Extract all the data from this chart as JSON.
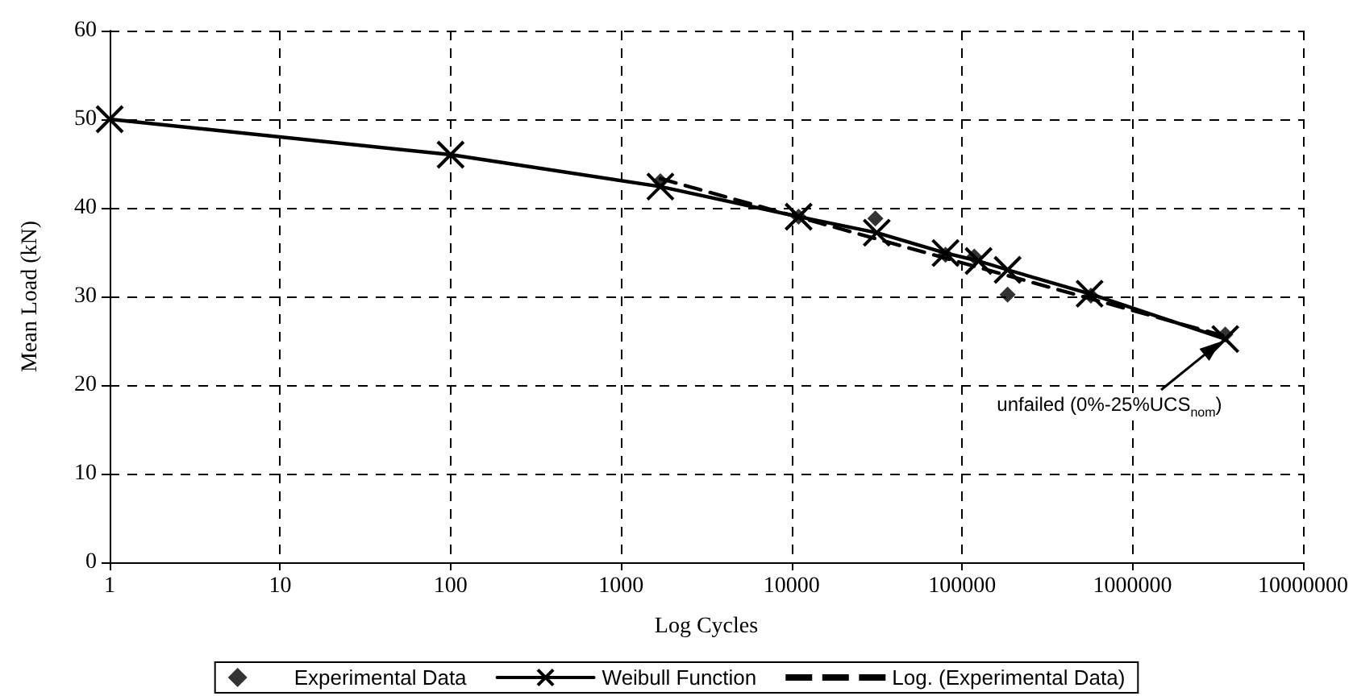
{
  "chart_data": {
    "type": "line",
    "xlabel": "Log Cycles",
    "ylabel": "Mean Load (kN)",
    "log": "x",
    "grid": true,
    "legend": "bottom",
    "xlim": [
      1,
      10000000
    ],
    "xticks": [
      1,
      10,
      100,
      1000,
      10000,
      100000,
      1000000,
      10000000
    ],
    "ylim": [
      0,
      60
    ],
    "yticks": [
      0,
      10,
      20,
      30,
      40,
      50,
      60
    ],
    "series": [
      {
        "name": "Experimental Data",
        "type": "scatter",
        "marker": "diamond",
        "color": "#000000",
        "x": [
          1700,
          11000,
          31000,
          80000,
          118000,
          185000,
          570000,
          3500000
        ],
        "values": [
          43,
          39,
          38.8,
          34.7,
          34.5,
          30.2,
          30.1,
          25.7
        ]
      },
      {
        "name": "Weibull Function",
        "type": "line",
        "marker": "cross",
        "line_style": "solid",
        "color": "#000000",
        "x": [
          1,
          100,
          1700,
          11000,
          31600,
          80000,
          125000,
          185000,
          560000,
          3500000
        ],
        "values": [
          50,
          46,
          42.4,
          39,
          37.2,
          34.9,
          34,
          33,
          30.3,
          25.2
        ]
      },
      {
        "name": "Log. (Experimental Data)",
        "type": "line",
        "marker": "none",
        "line_style": "dashed",
        "color": "#000000",
        "x": [
          1700,
          3500000
        ],
        "values": [
          43.3,
          25.5
        ]
      }
    ],
    "annotations": [
      "unfailed (0%-25%UCS$_{nom}$)"
    ]
  }
}
